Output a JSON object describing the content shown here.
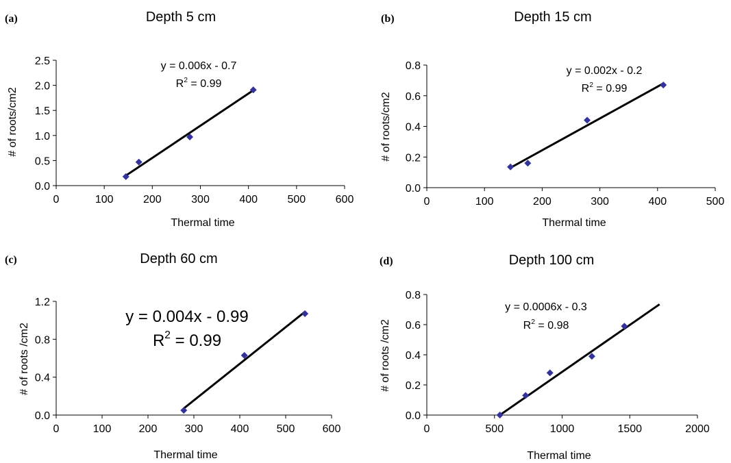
{
  "chart_data": [
    {
      "type": "scatter",
      "panel": "(a)",
      "title": "Depth 5 cm",
      "xlabel": "Thermal time",
      "ylabel": "# of roots/cm2",
      "xlim": [
        0,
        600
      ],
      "ylim": [
        0,
        2.5
      ],
      "xticks": [
        "0",
        "100",
        "200",
        "300",
        "400",
        "500",
        "600"
      ],
      "yticks": [
        "0.0",
        "0.5",
        "1.0",
        "1.5",
        "2.0",
        "2.5"
      ],
      "marker_color": "#333399",
      "points": [
        {
          "x": 145,
          "y": 0.18
        },
        {
          "x": 172,
          "y": 0.47
        },
        {
          "x": 278,
          "y": 0.97
        },
        {
          "x": 410,
          "y": 1.91
        }
      ],
      "trendline": {
        "x": [
          145,
          410
        ],
        "y": [
          0.2,
          1.9
        ]
      },
      "equation": "y = 0.006x - 0.7",
      "r2_prefix": "R",
      "r2_sup": "2",
      "r2_suffix": " = 0.99",
      "grid": false
    },
    {
      "type": "scatter",
      "panel": "(b)",
      "title": "Depth 15 cm",
      "xlabel": "Thermal time",
      "ylabel": "# of roots/cm2",
      "xlim": [
        0,
        500
      ],
      "ylim": [
        0,
        0.8
      ],
      "xticks": [
        "0",
        "100",
        "200",
        "300",
        "400",
        "500"
      ],
      "yticks": [
        "0.0",
        "0.2",
        "0.4",
        "0.6",
        "0.8"
      ],
      "marker_color": "#333399",
      "points": [
        {
          "x": 145,
          "y": 0.135
        },
        {
          "x": 175,
          "y": 0.16
        },
        {
          "x": 278,
          "y": 0.44
        },
        {
          "x": 410,
          "y": 0.67
        }
      ],
      "trendline": {
        "x": [
          145,
          410
        ],
        "y": [
          0.13,
          0.68
        ]
      },
      "equation": "y = 0.002x - 0.2",
      "r2_prefix": "R",
      "r2_sup": "2",
      "r2_suffix": " = 0.99",
      "grid": false
    },
    {
      "type": "scatter",
      "panel": "(c)",
      "title": "Depth 60 cm",
      "xlabel": "Thermal time",
      "ylabel": "# of roots /cm2",
      "xlim": [
        0,
        600
      ],
      "ylim": [
        0,
        1.2
      ],
      "xticks": [
        "0",
        "100",
        "200",
        "300",
        "400",
        "500",
        "600"
      ],
      "yticks": [
        "0.0",
        "0.4",
        "0.8",
        "1.2"
      ],
      "marker_color": "#333399",
      "points": [
        {
          "x": 278,
          "y": 0.05
        },
        {
          "x": 410,
          "y": 0.63
        },
        {
          "x": 542,
          "y": 1.07
        }
      ],
      "trendline": {
        "x": [
          278,
          542
        ],
        "y": [
          0.07,
          1.09
        ]
      },
      "equation": "y = 0.004x - 0.99",
      "r2_prefix": "R",
      "r2_sup": "2",
      "r2_suffix": " = 0.99",
      "grid": false
    },
    {
      "type": "scatter",
      "panel": "(d)",
      "title": "Depth 100 cm",
      "xlabel": "Thermal time",
      "ylabel": "# of roots /cm2",
      "xlim": [
        0,
        2000
      ],
      "ylim": [
        0,
        0.8
      ],
      "xticks": [
        "0",
        "500",
        "1000",
        "1500",
        "2000"
      ],
      "yticks": [
        "0.0",
        "0.2",
        "0.4",
        "0.6",
        "0.8"
      ],
      "marker_color": "#333399",
      "points": [
        {
          "x": 540,
          "y": 0.0
        },
        {
          "x": 730,
          "y": 0.13
        },
        {
          "x": 910,
          "y": 0.28
        },
        {
          "x": 1220,
          "y": 0.39
        },
        {
          "x": 1460,
          "y": 0.59
        }
      ],
      "trendline": {
        "x": [
          540,
          1720
        ],
        "y": [
          0.0,
          0.735
        ]
      },
      "equation": "y = 0.0006x - 0.3",
      "r2_prefix": "R",
      "r2_sup": "2",
      "r2_suffix": " = 0.98",
      "grid": false
    }
  ]
}
